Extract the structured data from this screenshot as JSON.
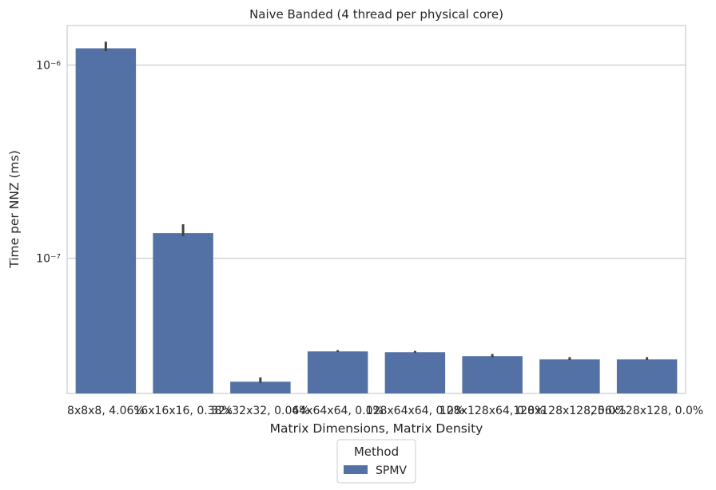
{
  "chart_data": {
    "type": "bar",
    "title": "Naive Banded (4 thread per physical core)",
    "xlabel": "Matrix Dimensions, Matrix Density",
    "ylabel": "Time per NNZ (ms)",
    "yscale": "log",
    "ylim": [
      2e-08,
      1.6e-06
    ],
    "yticks": [
      {
        "value": 1e-06,
        "label": "10⁻⁶"
      },
      {
        "value": 1e-07,
        "label": "10⁻⁷"
      }
    ],
    "grid": "horizontal",
    "categories": [
      "8x8x8, 4.06%",
      "16x16x16, 0.38%",
      "32x32x32, 0.04%",
      "64x64x64, 0.0%",
      "128x64x64, 0.0%",
      "128x128x64, 0.0%",
      "128x128x128, 0.0%",
      "256x128x128, 0.0%"
    ],
    "series": [
      {
        "name": "SPMV",
        "color": "#5471a5",
        "values": [
          1.22e-06,
          1.35e-07,
          2.3e-08,
          3.3e-08,
          3.27e-08,
          3.12e-08,
          3e-08,
          3e-08
        ],
        "err_low": [
          1.18e-06,
          1.3e-07,
          2.27e-08,
          3.28e-08,
          3.24e-08,
          3.08e-08,
          2.98e-08,
          2.98e-08
        ],
        "err_high": [
          1.32e-06,
          1.5e-07,
          2.42e-08,
          3.35e-08,
          3.32e-08,
          3.2e-08,
          3.08e-08,
          3.08e-08
        ]
      }
    ],
    "legend": {
      "title": "Method",
      "position": "bottom-center"
    }
  }
}
